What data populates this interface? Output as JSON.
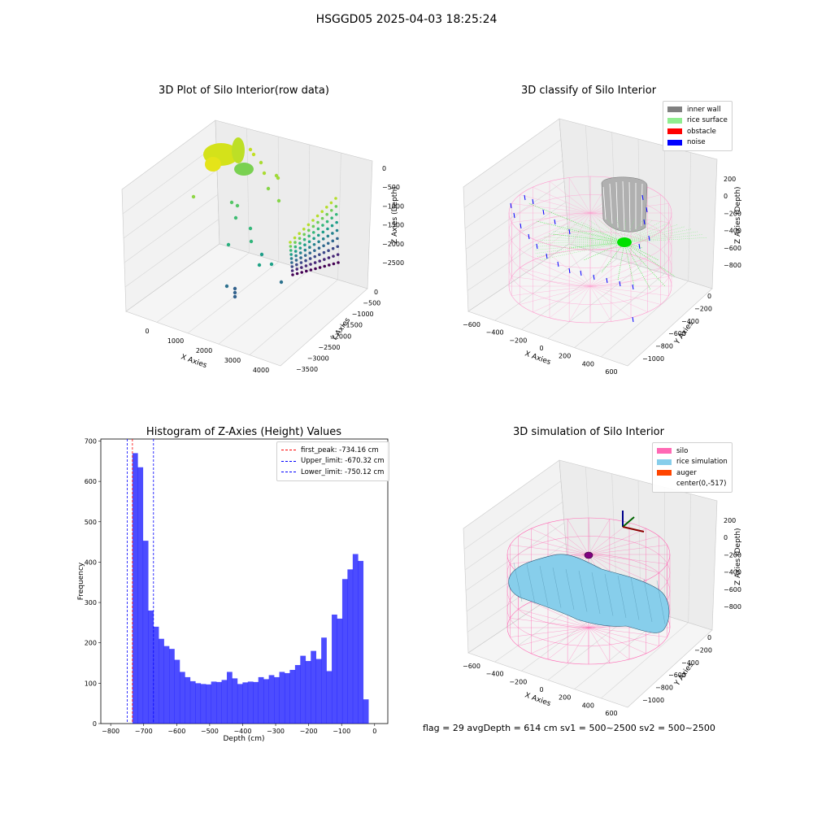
{
  "suptitle": "HSGGD05 2025-04-03 18:25:24",
  "panels": {
    "raw": {
      "title": "3D Plot of Silo Interior(row data)",
      "xlabel": "X Axies",
      "ylabel": "Y Axies",
      "zlabel": "Z Axies (Depth)",
      "xticks": [
        "0",
        "1000",
        "2000",
        "3000",
        "4000"
      ],
      "yticks": [
        "0",
        "−500",
        "−1000",
        "−1500",
        "−2000",
        "−2500",
        "−3000",
        "−3500"
      ],
      "zticks": [
        "0",
        "−500",
        "−1000",
        "−1500",
        "−2000",
        "−2500"
      ]
    },
    "classify": {
      "title": "3D classify of Silo Interior",
      "xlabel": "X Axies",
      "ylabel": "Y Axies",
      "zlabel": "Z Axies (Depth)",
      "xticks": [
        "−600",
        "−400",
        "−200",
        "0",
        "200",
        "400",
        "600"
      ],
      "yticks": [
        "0",
        "−200",
        "−400",
        "−600",
        "−800",
        "−1000"
      ],
      "zticks": [
        "200",
        "0",
        "−200",
        "−400",
        "−600",
        "−800"
      ],
      "legend": [
        {
          "label": "inner wall",
          "color": "#808080"
        },
        {
          "label": "rice surface",
          "color": "#90ee90"
        },
        {
          "label": "obstacle",
          "color": "#ff0000"
        },
        {
          "label": "noise",
          "color": "#0000ff"
        }
      ]
    },
    "simulation": {
      "title": "3D simulation of Silo Interior",
      "xlabel": "X Axies",
      "ylabel": "Y Axies",
      "zlabel": "Z Axies (Depth)",
      "xticks": [
        "−600",
        "−400",
        "−200",
        "0",
        "200",
        "400",
        "600"
      ],
      "yticks": [
        "0",
        "−200",
        "−400",
        "−600",
        "−800",
        "−1000"
      ],
      "zticks": [
        "200",
        "0",
        "−200",
        "−400",
        "−600",
        "−800"
      ],
      "legend": [
        {
          "label": "silo",
          "color": "#ff69b4"
        },
        {
          "label": "rice simulation",
          "color": "#87ceeb"
        },
        {
          "label": "auger",
          "color": "#ff4500"
        },
        {
          "label": "center(0,-517)",
          "color": ""
        }
      ]
    }
  },
  "chart_data": [
    {
      "type": "bar",
      "title": "Histogram of Z-Axies (Height) Values",
      "xlabel": "Depth (cm)",
      "ylabel": "Frequency",
      "xlim": [
        -830,
        40
      ],
      "ylim": [
        0,
        705
      ],
      "xticks": [
        -800,
        -700,
        -600,
        -500,
        -400,
        -300,
        -200,
        -100,
        0
      ],
      "yticks": [
        0,
        100,
        200,
        300,
        400,
        500,
        600,
        700
      ],
      "bar_color": "#0000ff",
      "bins_start": -734.16,
      "bin_width": 15.9,
      "values": [
        670,
        635,
        453,
        280,
        240,
        210,
        192,
        185,
        158,
        128,
        115,
        105,
        100,
        98,
        97,
        104,
        103,
        108,
        128,
        112,
        98,
        102,
        104,
        103,
        115,
        110,
        120,
        115,
        128,
        125,
        133,
        145,
        168,
        155,
        180,
        160,
        213,
        130,
        270,
        260,
        358,
        382,
        420,
        403,
        60
      ],
      "lines": [
        {
          "label": "first_peak: -734.16 cm",
          "x": -734.16,
          "color": "#ff0000"
        },
        {
          "label": "Upper_limit: -670.32 cm",
          "x": -670.32,
          "color": "#0000ff"
        },
        {
          "label": "Lower_limit: -750.12 cm",
          "x": -750.12,
          "color": "#0000ff"
        }
      ]
    }
  ],
  "footer": {
    "status": "flag = 29  avgDepth = 614 cm  sv1 = 500~2500  sv2 = 500~2500"
  }
}
